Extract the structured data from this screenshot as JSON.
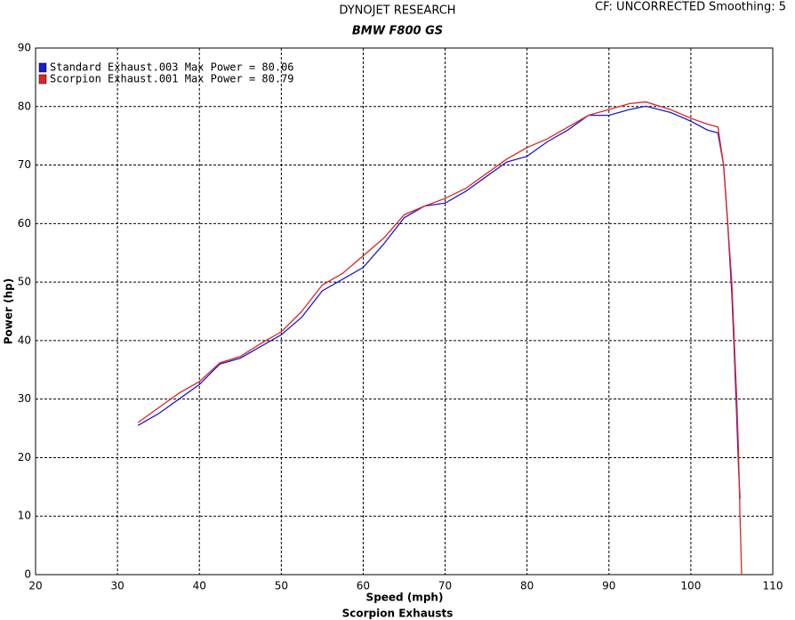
{
  "chart_data": {
    "type": "line",
    "title": "DYNOJET RESEARCH",
    "subtitle": "BMW F800 GS",
    "correction": "CF: UNCORRECTED",
    "smoothing": "Smoothing: 5",
    "x_label": "Speed (mph)",
    "y_label": "Power (hp)",
    "footer": "Scorpion Exhausts",
    "xlim": [
      20,
      110
    ],
    "ylim": [
      0,
      90
    ],
    "xticks": [
      20,
      30,
      40,
      50,
      60,
      70,
      80,
      90,
      100,
      110
    ],
    "yticks": [
      0,
      10,
      20,
      30,
      40,
      50,
      60,
      70,
      80,
      90
    ],
    "grid": true,
    "legend": "upper left",
    "x": [
      32.5,
      35,
      37.5,
      40,
      42.5,
      45,
      47.5,
      50,
      52.5,
      55,
      57.5,
      60,
      62.5,
      65,
      67.5,
      70,
      72.5,
      75,
      77.5,
      80,
      82.5,
      85,
      87.5,
      90,
      92.5,
      94.5,
      97.5,
      100,
      102,
      103.3,
      104,
      104.5,
      105,
      105.3,
      105.6,
      105.8,
      106,
      106.2
    ],
    "series": [
      {
        "name": "Standard Exhaust.003 Max Power = 80.06",
        "color": "#1a1ad0",
        "values": [
          25.5,
          27.5,
          30,
          32.5,
          36,
          37,
          39,
          41,
          44,
          48.5,
          50.5,
          52.5,
          56.5,
          61,
          63,
          63.5,
          65.5,
          68,
          70.5,
          71.5,
          74,
          76,
          78.5,
          78.5,
          79.5,
          80.06,
          79,
          77.5,
          76,
          75.5,
          70,
          60,
          48,
          38,
          27,
          19,
          13,
          null
        ]
      },
      {
        "name": "Scorpion Exhaust.001 Max Power = 80.79",
        "color": "#e02424",
        "values": [
          26,
          28.5,
          31,
          33,
          36.2,
          37.3,
          39.5,
          41.5,
          45,
          49.5,
          51.5,
          54.5,
          57.5,
          61.5,
          63,
          64.3,
          66,
          68.5,
          71,
          73,
          74.5,
          76.5,
          78.5,
          79.5,
          80.5,
          80.79,
          79.5,
          78,
          77,
          76.5,
          70,
          60,
          50,
          40,
          30,
          22,
          10,
          0
        ]
      }
    ]
  }
}
